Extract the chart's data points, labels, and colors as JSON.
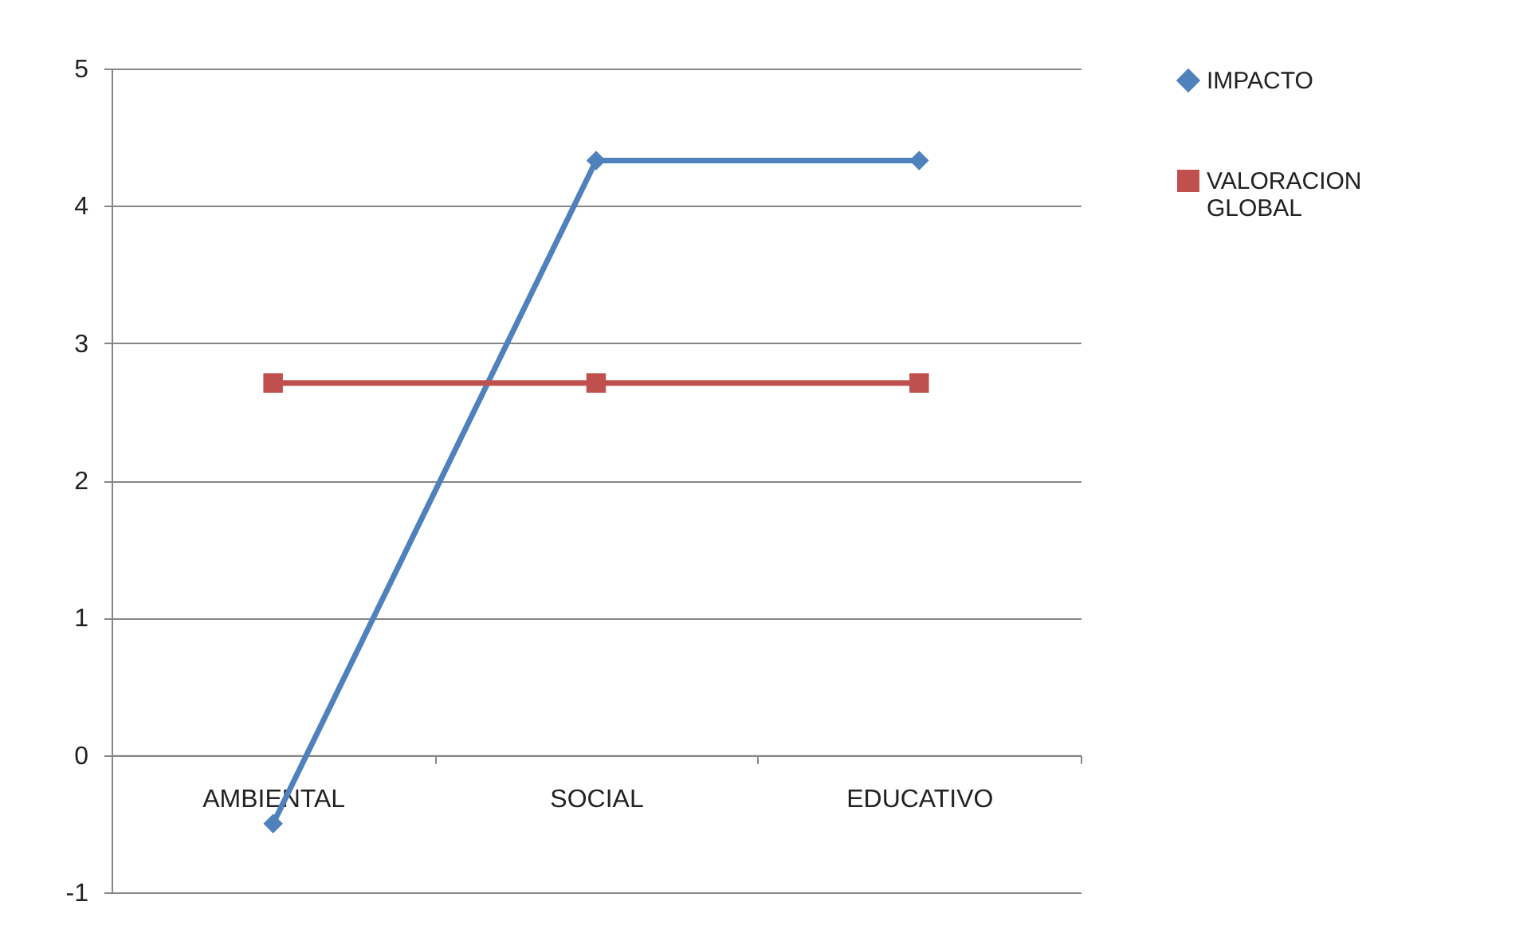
{
  "chart_data": {
    "type": "line",
    "categories": [
      "AMBIENTAL",
      "SOCIAL",
      "EDUCATIVO"
    ],
    "series": [
      {
        "name": "IMPACTO",
        "color": "#4f81bd",
        "marker": "diamond",
        "values": [
          -0.5,
          4.33,
          4.33
        ]
      },
      {
        "name": "VALORACION GLOBAL",
        "color": "#c0504d",
        "marker": "square",
        "values": [
          2.71,
          2.71,
          2.71
        ]
      }
    ],
    "ylim": [
      -1,
      5
    ],
    "yticks": [
      -1,
      0,
      1,
      2,
      3,
      4,
      5
    ],
    "grid": "y",
    "legend": "right",
    "line_style": "solid"
  }
}
